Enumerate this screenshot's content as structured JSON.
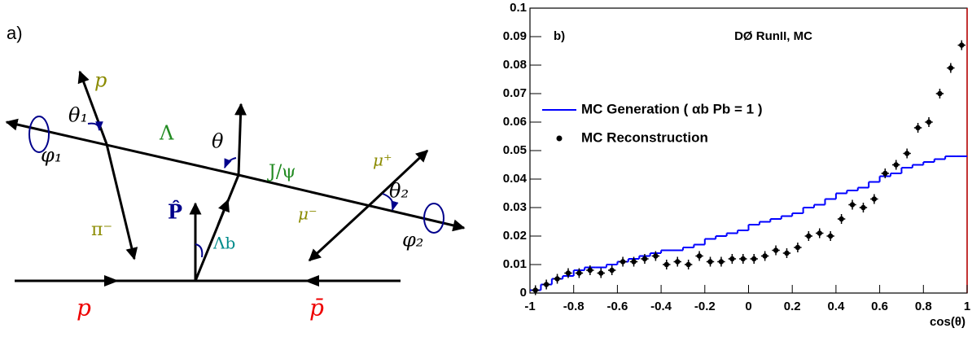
{
  "diagram": {
    "panel_label": "a)",
    "labels": [
      "p",
      "θ₁",
      "Λ",
      "θ",
      "J/ψ",
      "μ⁺",
      "θ₂",
      "φ₁",
      "π⁻",
      "P̂",
      "Λb",
      "μ⁻",
      "φ₂",
      "p",
      "p̄"
    ]
  },
  "chart_data": {
    "type": "histogram",
    "panel_label": "b)",
    "title": "DØ RunII, MC",
    "x_label": "cos(θ)",
    "bins": [
      -1,
      -0.95,
      -0.9,
      -0.85,
      -0.8,
      -0.75,
      -0.7,
      -0.65,
      -0.6,
      -0.55,
      -0.5,
      -0.45,
      -0.4,
      -0.35,
      -0.3,
      -0.25,
      -0.2,
      -0.15,
      -0.1,
      -0.05,
      0,
      0.05,
      0.1,
      0.15,
      0.2,
      0.25,
      0.3,
      0.35,
      0.4,
      0.45,
      0.5,
      0.55,
      0.6,
      0.65,
      0.7,
      0.75,
      0.8,
      0.85,
      0.9,
      0.95,
      1
    ],
    "series": [
      {
        "name": "MC Generation ( αb Pb = 1 )",
        "color": "#0000ff",
        "style": "step",
        "values": [
          0.001,
          0.003,
          0.005,
          0.006,
          0.008,
          0.009,
          0.009,
          0.01,
          0.011,
          0.012,
          0.013,
          0.014,
          0.015,
          0.015,
          0.016,
          0.017,
          0.019,
          0.02,
          0.021,
          0.022,
          0.024,
          0.025,
          0.026,
          0.027,
          0.028,
          0.03,
          0.031,
          0.033,
          0.035,
          0.036,
          0.037,
          0.039,
          0.041,
          0.042,
          0.044,
          0.045,
          0.046,
          0.047,
          0.048,
          0.048
        ]
      },
      {
        "name": "MC Reconstruction",
        "color": "#000000",
        "style": "points",
        "values": [
          0.001,
          0.003,
          0.005,
          0.007,
          0.007,
          0.008,
          0.007,
          0.008,
          0.011,
          0.011,
          0.012,
          0.013,
          0.01,
          0.011,
          0.01,
          0.013,
          0.011,
          0.011,
          0.012,
          0.012,
          0.012,
          0.013,
          0.015,
          0.014,
          0.016,
          0.02,
          0.021,
          0.02,
          0.026,
          0.031,
          0.03,
          0.033,
          0.042,
          0.045,
          0.049,
          0.058,
          0.06,
          0.07,
          0.079,
          0.087
        ]
      }
    ],
    "xlim": [
      -1,
      1
    ],
    "xticks": [
      -1,
      -0.8,
      -0.6,
      -0.4,
      -0.2,
      0,
      0.2,
      0.4,
      0.6,
      0.8,
      1
    ],
    "ylim": [
      0,
      0.1
    ],
    "yticks": [
      0,
      0.01,
      0.02,
      0.03,
      0.04,
      0.05,
      0.06,
      0.07,
      0.08,
      0.09,
      0.1
    ],
    "grid": false
  }
}
